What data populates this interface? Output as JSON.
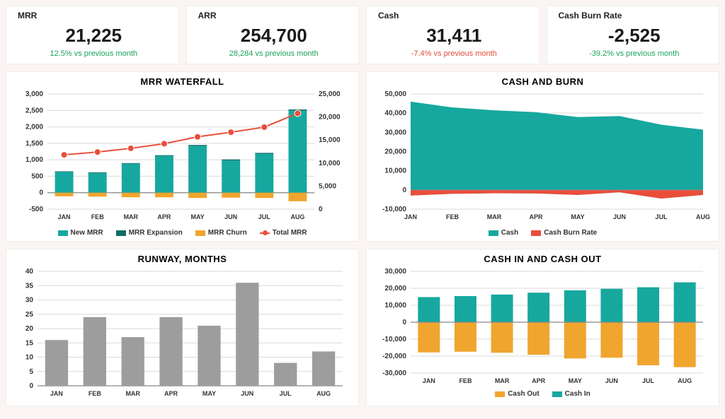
{
  "colors": {
    "teal": "#16a89e",
    "darkTeal": "#0e6d66",
    "orange": "#f0a52e",
    "red": "#ea4d3a",
    "gray": "#9d9d9d",
    "grid": "#d9d9d9",
    "axis": "#888888",
    "bg": "#ffffff",
    "pageBg": "#faf5f2"
  },
  "kpis": [
    {
      "label": "MRR",
      "value": "21,225",
      "delta": "12.5% vs previous month",
      "positive": true
    },
    {
      "label": "ARR",
      "value": "254,700",
      "delta": "28,284 vs previous month",
      "positive": true
    },
    {
      "label": "Cash",
      "value": "31,411",
      "delta": "-7.4% vs previous month",
      "positive": false
    },
    {
      "label": "Cash Burn Rate",
      "value": "-2,525",
      "delta": "-39.2% vs previous month",
      "positive": true
    }
  ],
  "categories": [
    "JAN",
    "FEB",
    "MAR",
    "APR",
    "MAY",
    "JUN",
    "JUL",
    "AUG"
  ],
  "waterfall": {
    "title": "MRR WATERFALL",
    "yLeft": {
      "min": -500,
      "max": 3000,
      "step": 500
    },
    "yRight": {
      "min": 0,
      "max": 25000,
      "step": 5000
    },
    "newMRR": [
      630,
      600,
      880,
      1120,
      1420,
      980,
      1180,
      2500
    ],
    "mrrExpansion": [
      20,
      20,
      20,
      20,
      30,
      30,
      30,
      30
    ],
    "mrrChurn": [
      -110,
      -120,
      -140,
      -140,
      -160,
      -150,
      -160,
      -260
    ],
    "totalMRR": [
      11800,
      12400,
      13200,
      14200,
      15700,
      16700,
      17800,
      20800
    ],
    "legend": [
      "New MRR",
      "MRR Expansion",
      "MRR Churn",
      "Total MRR"
    ],
    "barWidth": 0.55
  },
  "cashAndBurn": {
    "title": "CASH AND BURN",
    "y": {
      "min": -10000,
      "max": 50000,
      "step": 10000
    },
    "cash": [
      46000,
      43000,
      41500,
      40500,
      38000,
      38500,
      34000,
      31400
    ],
    "burnRate": [
      -2900,
      -2000,
      -1700,
      -1800,
      -2600,
      -1200,
      -4500,
      -2600
    ],
    "legend": [
      "Cash",
      "Cash Burn Rate"
    ]
  },
  "runway": {
    "title": "RUNWAY, MONTHS",
    "y": {
      "min": 0,
      "max": 40,
      "step": 5
    },
    "values": [
      16,
      24,
      17,
      24,
      21,
      36,
      8,
      12
    ],
    "barWidth": 0.6
  },
  "cashInOut": {
    "title": "CASH IN AND CASH OUT",
    "y": {
      "min": -30000,
      "max": 30000,
      "step": 10000
    },
    "cashIn": [
      14800,
      15400,
      16300,
      17400,
      18800,
      19700,
      20600,
      23500
    ],
    "cashOut": [
      -17800,
      -17400,
      -18000,
      -19200,
      -21400,
      -20900,
      -25400,
      -26500
    ],
    "legend": [
      "Cash Out",
      "Cash In"
    ],
    "barWidth": 0.6
  }
}
